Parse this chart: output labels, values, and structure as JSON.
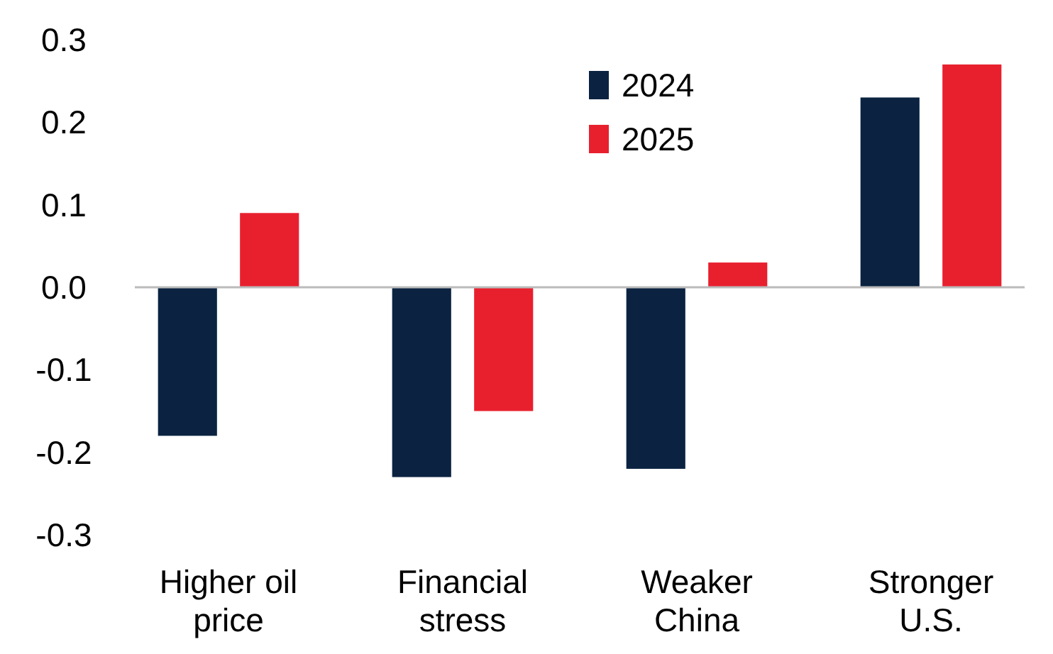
{
  "chart_data": {
    "type": "bar",
    "categories": [
      "Higher oil price",
      "Financial stress",
      "Weaker China",
      "Stronger U.S."
    ],
    "series": [
      {
        "name": "2024",
        "color": "#0b2341",
        "values": [
          -0.18,
          -0.23,
          -0.22,
          0.23
        ]
      },
      {
        "name": "2025",
        "color": "#e8202e",
        "values": [
          0.09,
          -0.15,
          0.03,
          0.27
        ]
      }
    ],
    "ylim": [
      -0.3,
      0.3
    ],
    "yticks": [
      {
        "value": -0.3,
        "label": "-0.3"
      },
      {
        "value": -0.2,
        "label": "-0.2"
      },
      {
        "value": -0.1,
        "label": "-0.1"
      },
      {
        "value": 0,
        "label": "0.0"
      },
      {
        "value": 0.1,
        "label": "0.1"
      },
      {
        "value": 0.2,
        "label": "0.2"
      },
      {
        "value": 0.3,
        "label": "0.3"
      }
    ],
    "legend": "top"
  }
}
